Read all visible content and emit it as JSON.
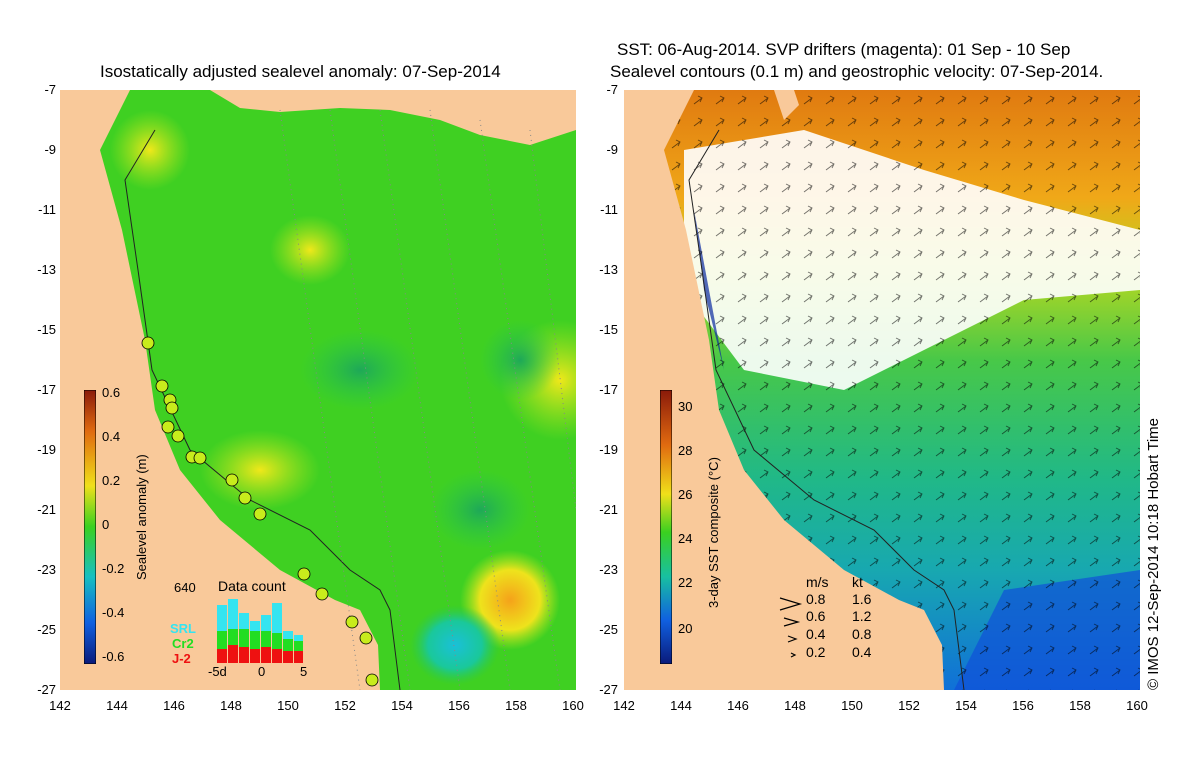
{
  "left_panel": {
    "title": "Isostatically adjusted sealevel anomaly: 07-Sep-2014",
    "colorbar_label": "Sealevel anomaly (m)",
    "colorbar_ticks": [
      "0.6",
      "0.4",
      "0.2",
      "0",
      "-0.2",
      "-0.4",
      "-0.6"
    ],
    "data_count": {
      "title": "Data count",
      "max_label": "640",
      "series": [
        "SRL",
        "Cr2",
        "J-2"
      ],
      "series_colors": [
        "#35e4f0",
        "#22dd22",
        "#ee1111"
      ],
      "x_labels": [
        "-5d",
        "0",
        "5"
      ]
    }
  },
  "right_panel": {
    "title_line1": "SST: 06-Aug-2014. SVP drifters (magenta): 01 Sep - 10 Sep",
    "title_line2": "Sealevel contours (0.1 m) and geostrophic velocity: 07-Sep-2014.",
    "colorbar_label": "3-day SST composite (°C)",
    "colorbar_ticks": [
      "30",
      "28",
      "26",
      "24",
      "22",
      "20"
    ],
    "velocity_legend": {
      "header_ms": "m/s",
      "header_kt": "kt",
      "rows": [
        {
          "ms": "0.8",
          "kt": "1.6"
        },
        {
          "ms": "0.6",
          "kt": "1.2"
        },
        {
          "ms": "0.4",
          "kt": "0.8"
        },
        {
          "ms": "0.2",
          "kt": "0.4"
        }
      ]
    }
  },
  "axes": {
    "y_labels": [
      "-7",
      "-9",
      "-11",
      "-13",
      "-15",
      "-17",
      "-19",
      "-21",
      "-23",
      "-25",
      "-27"
    ],
    "x_labels": [
      "142",
      "144",
      "146",
      "148",
      "150",
      "152",
      "154",
      "156",
      "158",
      "160"
    ]
  },
  "credit": "© IMOS 12-Sep-2014 10:18 Hobart Time",
  "colors": {
    "land": "#f9c99a",
    "ocean_green": "#39d21e",
    "ocean_light": "#9be01e",
    "sst_orange": "#e07a10",
    "sst_green": "#2fc060",
    "sst_teal": "#1aa8a0",
    "sst_blue": "#1060e0"
  }
}
